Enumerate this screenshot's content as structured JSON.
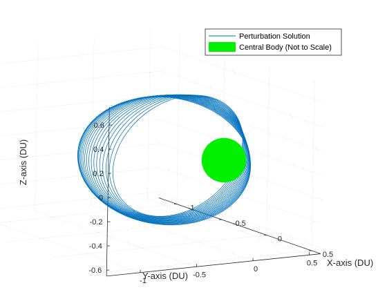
{
  "chart_data": {
    "type": "line",
    "view": "3d",
    "xlabel": "X-axis (DU)",
    "ylabel": "Y-axis (DU)",
    "zlabel": "Z-axis (DU)",
    "xlim": [
      -1.2,
      0.6
    ],
    "ylim": [
      -1.3,
      0.6
    ],
    "zlim": [
      -0.65,
      0.75
    ],
    "x_ticks": [
      "-1",
      "-0.5",
      "0",
      "0.5"
    ],
    "y_ticks": [
      "-1",
      "-0.5",
      "0",
      "0.5"
    ],
    "z_ticks": [
      "-0.6",
      "-0.4",
      "-0.2",
      "0",
      "0.2",
      "0.4",
      "0.6"
    ],
    "grid": true,
    "legend_position": "top-right",
    "series": [
      {
        "name": "Perturbation Solution",
        "color": "#0072BD",
        "description_type": "precessing elliptical orbit",
        "revolutions": 18,
        "semi_major_axis": 0.6,
        "eccentricity": 0.42,
        "inclination_deg": 55,
        "raan_start_deg": 0,
        "raan_end_deg": 50
      },
      {
        "name": "Central Body (Not to Scale)",
        "color": "#00F000",
        "radius": 0.2,
        "center": [
          0,
          0,
          0
        ]
      }
    ]
  }
}
